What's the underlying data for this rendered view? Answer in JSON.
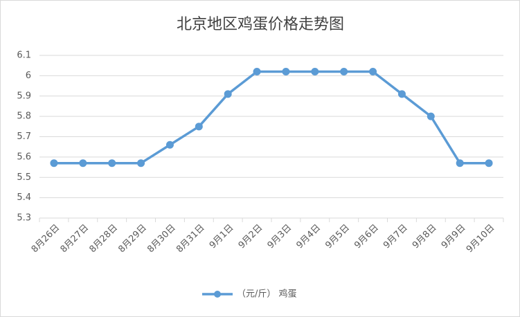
{
  "chart_data": {
    "type": "line",
    "title": "北京地区鸡蛋价格走势图",
    "categories": [
      "8月26日",
      "8月27日",
      "8月28日",
      "8月29日",
      "8月30日",
      "8月31日",
      "9月1日",
      "9月2日",
      "9月3日",
      "9月4日",
      "9月5日",
      "9月6日",
      "9月7日",
      "9月8日",
      "9月9日",
      "9月10日"
    ],
    "series": [
      {
        "name": "（元/斤） 鸡蛋",
        "color": "#5b9bd5",
        "values": [
          5.57,
          5.57,
          5.57,
          5.57,
          5.66,
          5.75,
          5.91,
          6.02,
          6.02,
          6.02,
          6.02,
          6.02,
          5.91,
          5.8,
          5.57,
          5.57
        ]
      }
    ],
    "ylim": [
      5.3,
      6.1
    ],
    "yticks": [
      5.3,
      5.4,
      5.5,
      5.6,
      5.7,
      5.8,
      5.9,
      6,
      6.1
    ],
    "grid": true,
    "legend": "bottom"
  }
}
